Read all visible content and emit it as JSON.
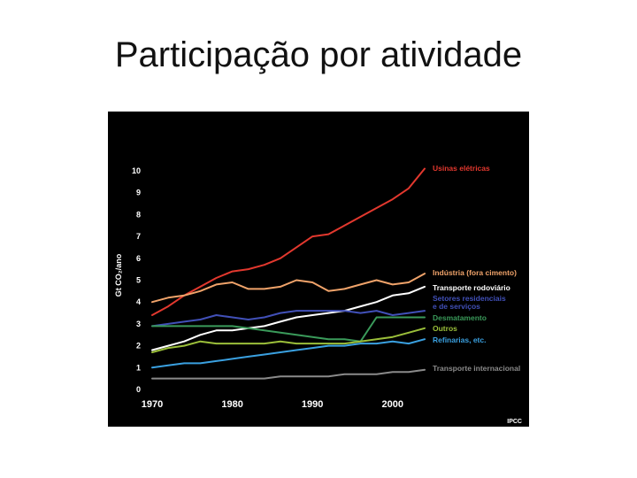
{
  "slide": {
    "title": "Participação por atividade"
  },
  "chart_data": {
    "type": "line",
    "title": "",
    "xlabel": "",
    "ylabel": "Gt CO₂/ano",
    "xlim": [
      1970,
      2004
    ],
    "ylim": [
      0,
      10
    ],
    "xticks": [
      1970,
      1980,
      1990,
      2000
    ],
    "yticks": [
      0,
      1,
      2,
      3,
      4,
      5,
      6,
      7,
      8,
      9,
      10
    ],
    "grid": false,
    "legend": "right",
    "source": "IPCC",
    "x": [
      1970,
      1972,
      1974,
      1976,
      1978,
      1980,
      1982,
      1984,
      1986,
      1988,
      1990,
      1992,
      1994,
      1996,
      1998,
      2000,
      2002,
      2004
    ],
    "series": [
      {
        "name": "Usinas elétricas",
        "color": "#e2382e",
        "values": [
          3.4,
          3.8,
          4.3,
          4.7,
          5.1,
          5.4,
          5.5,
          5.7,
          6.0,
          6.5,
          7.0,
          7.1,
          7.5,
          7.9,
          8.3,
          8.7,
          9.2,
          10.1
        ]
      },
      {
        "name": "Indústria (fora cimento)",
        "color": "#f0a36a",
        "values": [
          4.0,
          4.2,
          4.3,
          4.5,
          4.8,
          4.9,
          4.6,
          4.6,
          4.7,
          5.0,
          4.9,
          4.5,
          4.6,
          4.8,
          5.0,
          4.8,
          4.9,
          5.3
        ]
      },
      {
        "name": "Transporte rodoviário",
        "color": "#ffffff",
        "values": [
          1.8,
          2.0,
          2.2,
          2.5,
          2.7,
          2.7,
          2.8,
          2.9,
          3.1,
          3.3,
          3.4,
          3.5,
          3.6,
          3.8,
          4.0,
          4.3,
          4.4,
          4.7
        ]
      },
      {
        "name": "Setores residenciais e de serviços",
        "color": "#4150b8",
        "values": [
          2.9,
          3.0,
          3.1,
          3.2,
          3.4,
          3.3,
          3.2,
          3.3,
          3.5,
          3.6,
          3.6,
          3.6,
          3.6,
          3.5,
          3.6,
          3.4,
          3.5,
          3.6
        ]
      },
      {
        "name": "Desmatamento",
        "color": "#3a9a5a",
        "values": [
          2.9,
          2.9,
          2.9,
          2.9,
          2.9,
          2.9,
          2.8,
          2.7,
          2.6,
          2.5,
          2.4,
          2.3,
          2.3,
          2.2,
          3.3,
          3.3,
          3.3,
          3.3
        ]
      },
      {
        "name": "Outros",
        "color": "#9bbf3a",
        "values": [
          1.7,
          1.9,
          2.0,
          2.2,
          2.1,
          2.1,
          2.1,
          2.1,
          2.2,
          2.1,
          2.1,
          2.1,
          2.1,
          2.2,
          2.3,
          2.4,
          2.6,
          2.8
        ]
      },
      {
        "name": "Refinarias, etc.",
        "color": "#3aa0e0",
        "values": [
          1.0,
          1.1,
          1.2,
          1.2,
          1.3,
          1.4,
          1.5,
          1.6,
          1.7,
          1.8,
          1.9,
          2.0,
          2.0,
          2.1,
          2.1,
          2.2,
          2.1,
          2.3
        ]
      },
      {
        "name": "Transporte internacional",
        "color": "#8a8a8a",
        "values": [
          0.5,
          0.5,
          0.5,
          0.5,
          0.5,
          0.5,
          0.5,
          0.5,
          0.6,
          0.6,
          0.6,
          0.6,
          0.7,
          0.7,
          0.7,
          0.8,
          0.8,
          0.9
        ]
      }
    ]
  }
}
